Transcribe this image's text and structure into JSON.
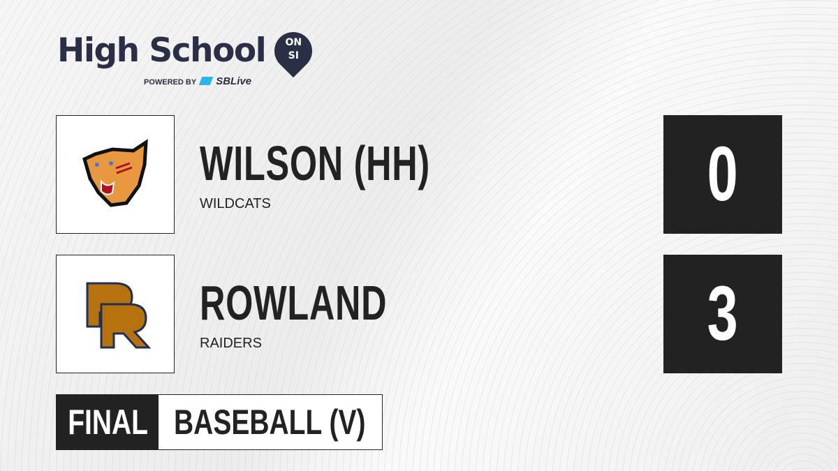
{
  "brand": {
    "title": "High School",
    "badge_top": "ON",
    "badge_bottom": "SI",
    "powered_by": "POWERED BY",
    "partner": "SBLive",
    "primary_color": "#2b2f45",
    "partner_color": "#2bb5e8"
  },
  "teams": [
    {
      "name": "WILSON (HH)",
      "mascot": "WILDCATS",
      "score": "0",
      "logo_icon": "wildcat-icon"
    },
    {
      "name": "ROWLAND",
      "mascot": "RAIDERS",
      "score": "3",
      "logo_icon": "rr-monogram-icon"
    }
  ],
  "status": {
    "label": "FINAL",
    "sport": "BASEBALL (V)"
  }
}
